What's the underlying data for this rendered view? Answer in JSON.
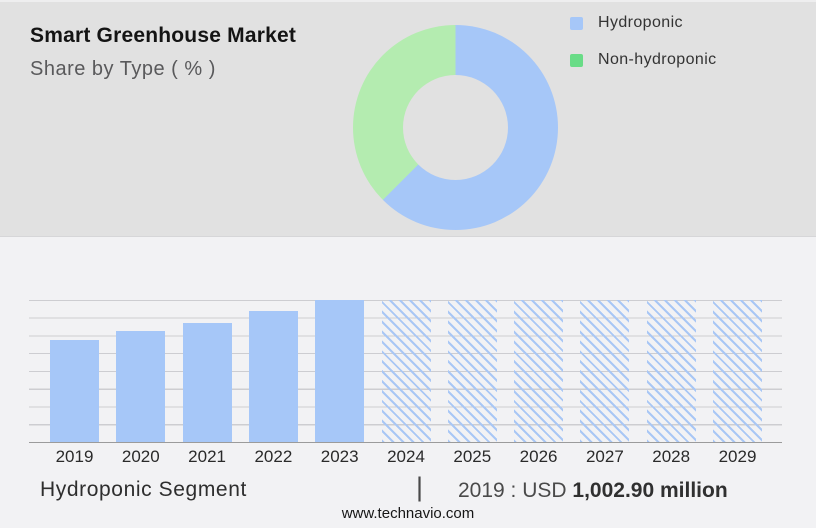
{
  "header": {
    "title": "Smart Greenhouse Market",
    "subtitle": "Share by Type ( % )"
  },
  "legend": {
    "items": [
      {
        "label": "Hydroponic",
        "color": "#a6c7f8"
      },
      {
        "label": "Non-hydroponic",
        "color": "#69dc87"
      }
    ]
  },
  "footer": {
    "segment_label": "Hydroponic Segment",
    "separator": "|",
    "value_prefix": "2019 : USD ",
    "value_bold": "1,002.90 million",
    "website": "www.technavio.com"
  },
  "colors": {
    "top_panel_bg": "#e1e1e1",
    "bottom_bg": "#f2f2f4",
    "bar_blue": "#a6c7f8",
    "hatch_blue": "#a9c7f5",
    "donut_blue": "#a6c7f8",
    "donut_green": "#b4ecb0",
    "legend_green": "#69dc87",
    "gridline": "#cdcdd1",
    "axis_line": "#9b9b9b"
  },
  "chart_data": [
    {
      "type": "pie",
      "subtype": "donut",
      "title": "Smart Greenhouse Market — Share by Type ( % )",
      "start_angle_deg": 0,
      "direction": "clockwise",
      "inner_radius_ratio": 0.51,
      "legend_position": "right",
      "slices": [
        {
          "label": "Hydroponic",
          "value_pct": 62.5,
          "color": "#a6c7f8"
        },
        {
          "label": "Non-hydroponic",
          "value_pct": 37.5,
          "color": "#b4ecb0"
        }
      ]
    },
    {
      "type": "bar",
      "title": "Hydroponic Segment",
      "xlabel": "",
      "ylabel": "",
      "ylim_pct": [
        0,
        100
      ],
      "grid": true,
      "gridline_intervals": 8,
      "bar_color": "#a6c7f8",
      "hatch_color": "#a9c7f5",
      "categories": [
        "2019",
        "2020",
        "2021",
        "2022",
        "2023",
        "2024",
        "2025",
        "2026",
        "2027",
        "2028",
        "2029"
      ],
      "items": [
        {
          "year": "2019",
          "height_pct": 72,
          "style": "solid"
        },
        {
          "year": "2020",
          "height_pct": 78,
          "style": "solid"
        },
        {
          "year": "2021",
          "height_pct": 84,
          "style": "solid"
        },
        {
          "year": "2022",
          "height_pct": 92,
          "style": "solid"
        },
        {
          "year": "2023",
          "height_pct": 100,
          "style": "solid"
        },
        {
          "year": "2024",
          "height_pct": 100,
          "style": "hatched"
        },
        {
          "year": "2025",
          "height_pct": 100,
          "style": "hatched"
        },
        {
          "year": "2026",
          "height_pct": 100,
          "style": "hatched"
        },
        {
          "year": "2027",
          "height_pct": 100,
          "style": "hatched"
        },
        {
          "year": "2028",
          "height_pct": 100,
          "style": "hatched"
        },
        {
          "year": "2029",
          "height_pct": 100,
          "style": "hatched"
        }
      ],
      "forecast_from": "2024",
      "known_points": [
        {
          "year": "2019",
          "value": "USD 1,002.90 million"
        }
      ]
    }
  ]
}
